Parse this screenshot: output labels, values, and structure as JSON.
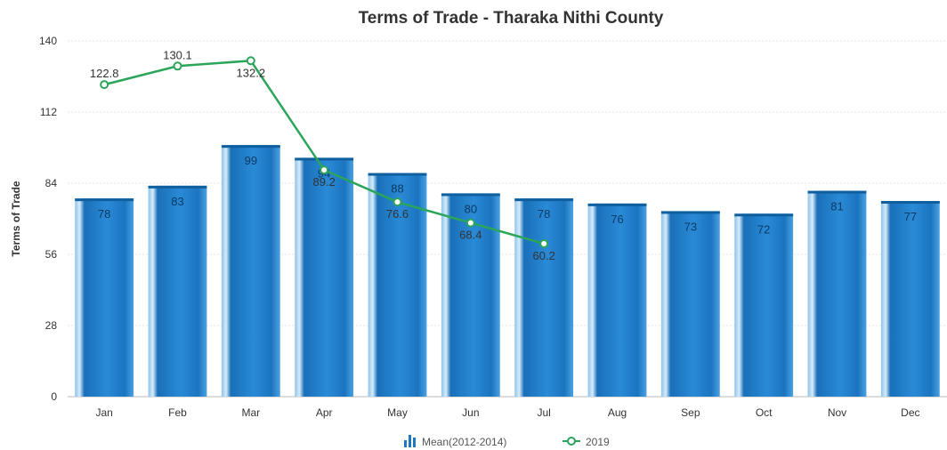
{
  "chart_data": {
    "type": "bar",
    "title": "Terms of Trade - Tharaka Nithi County",
    "xlabel": "",
    "ylabel": "Terms of Trade",
    "ylim": [
      0,
      140
    ],
    "yticks": [
      0,
      28,
      56,
      84,
      112,
      140
    ],
    "categories": [
      "Jan",
      "Feb",
      "Mar",
      "Apr",
      "May",
      "Jun",
      "Jul",
      "Aug",
      "Sep",
      "Oct",
      "Nov",
      "Dec"
    ],
    "series": [
      {
        "name": "Mean(2012-2014)",
        "type": "bar",
        "color": "#1f77c4",
        "values": [
          78,
          83,
          99,
          94,
          88,
          80,
          78,
          76,
          73,
          72,
          81,
          77
        ],
        "labels": [
          "78",
          "83",
          "99",
          "94",
          "88",
          "80",
          "78",
          "76",
          "73",
          "72",
          "81",
          "77"
        ]
      },
      {
        "name": "2019",
        "type": "line",
        "color": "#2aa55a",
        "values": [
          122.8,
          130.1,
          132.2,
          89.2,
          76.6,
          68.4,
          60.2,
          null,
          null,
          null,
          null,
          null
        ],
        "labels": [
          "122.8",
          "130.1",
          "132.2",
          "89.2",
          "76.6",
          "68.4",
          "60.2",
          "",
          "",
          "",
          "",
          ""
        ]
      }
    ],
    "grid": true,
    "legend_position": "bottom-center"
  }
}
